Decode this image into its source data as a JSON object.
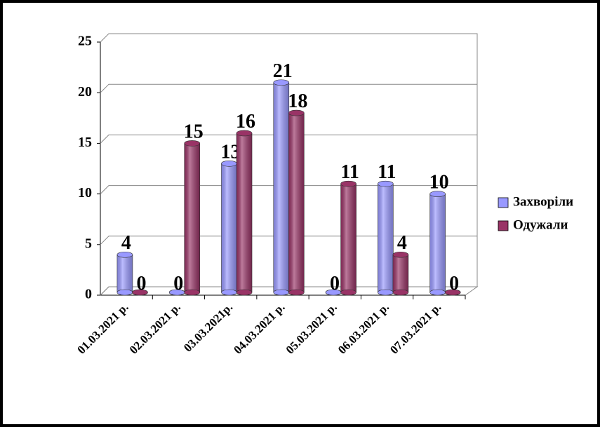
{
  "chart_data": {
    "type": "bar",
    "categories": [
      "01.03.2021 р.",
      "02.03.2021 р.",
      "03.03.2021р.",
      "04.03.2021 р.",
      "05.03.2021 р.",
      "06.03.2021 р.",
      "07.03.2021 р."
    ],
    "series": [
      {
        "name": "Захворіли",
        "color": "#9999ff",
        "values": [
          4,
          0,
          13,
          21,
          0,
          11,
          10
        ]
      },
      {
        "name": "Одужали",
        "color": "#993366",
        "values": [
          0,
          15,
          16,
          18,
          11,
          4,
          0
        ]
      }
    ],
    "ylim": [
      0,
      25
    ],
    "yticks": [
      0,
      5,
      10,
      15,
      20,
      25
    ],
    "grid": true,
    "legend": "right"
  }
}
